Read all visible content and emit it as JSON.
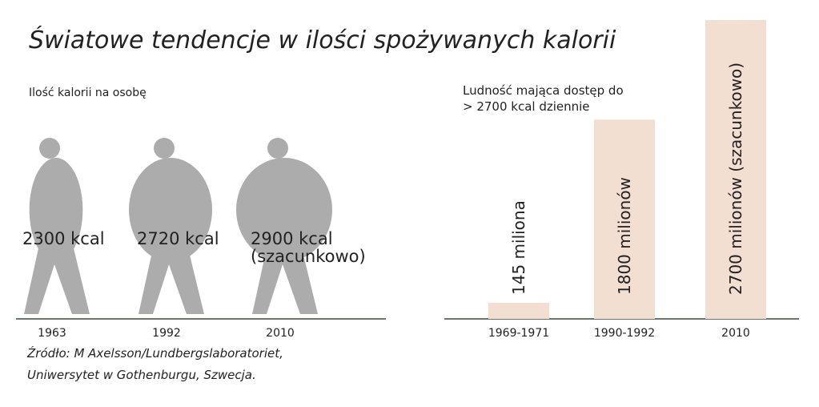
{
  "title": "Światowe tendencje w ilości spożywanych kalorii",
  "source": [
    "Źródło: M Axelsson/Lundbergslaboratoriet,",
    "Uniwersytet w Gothenburgu, Szwecja."
  ],
  "chart_data": [
    {
      "type": "pictogram",
      "title": "Ilość kalorii na osobę",
      "categories": [
        "1963",
        "1992",
        "2010"
      ],
      "values": [
        2300,
        2720,
        2900
      ],
      "value_labels": [
        "2300 kcal",
        "2720 kcal",
        "2900 kcal\n(szacunkowo)"
      ],
      "color": "#acacac"
    },
    {
      "type": "bar",
      "title": "Ludność mająca dostęp do\n> 2700 kcal dziennie",
      "categories": [
        "1969-1971",
        "1990-1992",
        "2010"
      ],
      "values": [
        145,
        1800,
        2700
      ],
      "value_labels": [
        "145  miliona",
        "1800 milionów",
        "2700 milionów (szacunkowo)"
      ],
      "color": "#f3ded2"
    }
  ]
}
